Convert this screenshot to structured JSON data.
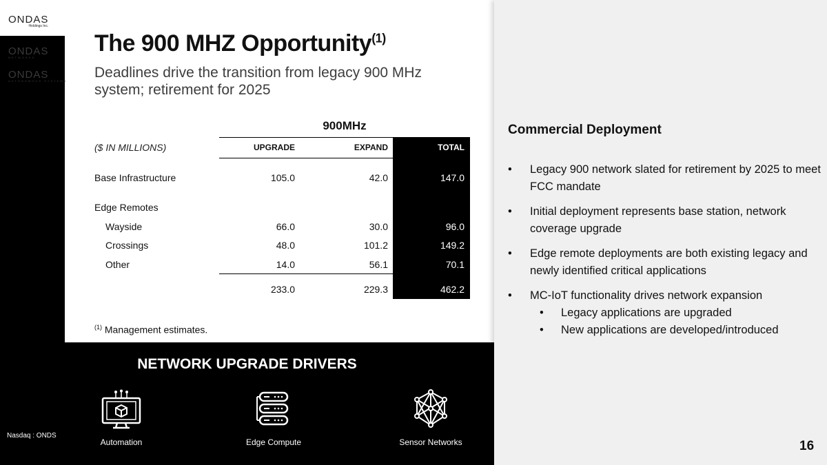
{
  "brand": {
    "logo_main": "ONDAS",
    "logo_main_sub": "Holdings Inc.",
    "logo_net": "ONDAS",
    "logo_net_sub": "NETWORKS",
    "logo_auto": "ONDAS",
    "logo_auto_sub": "AUTONOMOUS SYSTEMS"
  },
  "slide": {
    "title": "The 900 MHZ Opportunity",
    "title_sup": "(1)",
    "subtitle": "Deadlines drive the transition from legacy 900 MHz system; retirement for 2025",
    "page_number": "16",
    "nasdaq": "Nasdaq : ONDS"
  },
  "table": {
    "group_header": "900MHz",
    "units_label": "($ IN MILLIONS)",
    "columns": [
      "UPGRADE",
      "EXPAND",
      "TOTAL"
    ],
    "rows": [
      {
        "label": "Base Infrastructure",
        "upgrade": "105.0",
        "expand": "42.0",
        "total": "147.0"
      },
      {
        "label": "Edge Remotes"
      },
      {
        "label": "Wayside",
        "upgrade": "66.0",
        "expand": "30.0",
        "total": "96.0"
      },
      {
        "label": "Crossings",
        "upgrade": "48.0",
        "expand": "101.2",
        "total": "149.2"
      },
      {
        "label": "Other",
        "upgrade": "14.0",
        "expand": "56.1",
        "total": "70.1"
      }
    ],
    "totals": {
      "upgrade": "233.0",
      "expand": "229.3",
      "total": "462.2"
    },
    "footnote_sup": "(1)",
    "footnote": "Management estimates."
  },
  "drivers": {
    "title": "NETWORK UPGRADE DRIVERS",
    "items": [
      {
        "label": "Automation",
        "icon": "automation-icon"
      },
      {
        "label": "Edge Compute",
        "icon": "server-icon"
      },
      {
        "label": "Sensor Networks",
        "icon": "network-icon"
      }
    ]
  },
  "commercial": {
    "heading": "Commercial Deployment",
    "bullets": [
      "Legacy 900 network slated for retirement by 2025 to meet FCC mandate",
      "Initial deployment represents base station, network coverage upgrade",
      "Edge remote deployments are both existing legacy and newly identified critical applications",
      "MC-IoT functionality drives network expansion"
    ],
    "sub_bullets": [
      "Legacy applications are upgraded",
      "New applications are developed/introduced"
    ],
    "bullet_glyph": "•"
  }
}
